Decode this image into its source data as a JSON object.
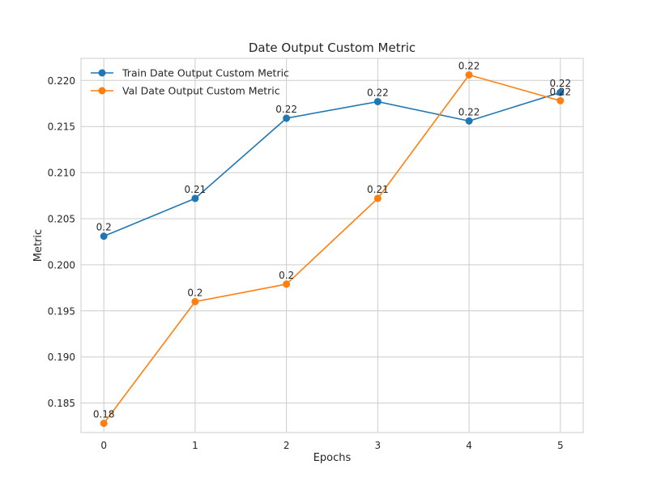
{
  "chart_data": {
    "type": "line",
    "title": "Date Output Custom Metric",
    "xlabel": "Epochs",
    "ylabel": "Metric",
    "x": [
      0,
      1,
      2,
      3,
      4,
      5
    ],
    "x_ticks": [
      "0",
      "1",
      "2",
      "3",
      "4",
      "5"
    ],
    "xlim": [
      -0.25,
      5.25
    ],
    "y_ticks": [
      "0.185",
      "0.190",
      "0.195",
      "0.200",
      "0.205",
      "0.210",
      "0.215",
      "0.220"
    ],
    "ylim": [
      0.1818,
      0.2224
    ],
    "grid": true,
    "legend_position": "upper-left",
    "series": [
      {
        "name": "Train Date Output Custom Metric",
        "color": "#1f77b4",
        "values": [
          0.2031,
          0.2072,
          0.2159,
          0.2177,
          0.2156,
          0.2187
        ],
        "labels": [
          "0.2",
          "0.21",
          "0.22",
          "0.22",
          "0.22",
          "0.22"
        ]
      },
      {
        "name": "Val Date Output Custom Metric",
        "color": "#ff7f0e",
        "values": [
          0.1828,
          0.196,
          0.1979,
          0.2072,
          0.2206,
          0.2178
        ],
        "labels": [
          "0.18",
          "0.2",
          "0.2",
          "0.21",
          "0.22",
          "0.22"
        ]
      }
    ]
  }
}
